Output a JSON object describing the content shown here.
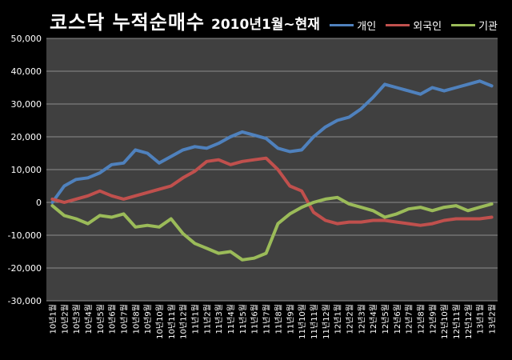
{
  "chart_data": {
    "type": "line",
    "title": "코스닥 누적순매수",
    "subtitle": "2010년1월~현재",
    "xlabel": "",
    "ylabel": "",
    "ylim": [
      -30000,
      50000
    ],
    "yticks": [
      -30000,
      -20000,
      -10000,
      0,
      10000,
      20000,
      30000,
      40000,
      50000
    ],
    "ytick_labels": [
      "-30,000",
      "-20,000",
      "-10,000",
      "0",
      "10,000",
      "20,000",
      "30,000",
      "40,000",
      "50,000"
    ],
    "grid": true,
    "legend_position": "top-right",
    "categories": [
      "10년1월",
      "10년2월",
      "10년3월",
      "10년4월",
      "10년5월",
      "10년6월",
      "10년7월",
      "10년8월",
      "10년9월",
      "10년10월",
      "10년11월",
      "10년12월",
      "11년1월",
      "11년2월",
      "11년3월",
      "11년4월",
      "11년5월",
      "11년6월",
      "11년7월",
      "11년8월",
      "11년9월",
      "11년10월",
      "11년11월",
      "11년12월",
      "12년1월",
      "12년2월",
      "12년3월",
      "12년4월",
      "12년5월",
      "12년6월",
      "12년7월",
      "12년8월",
      "12년9월",
      "12년10월",
      "12년11월",
      "12년12월",
      "13년1월",
      "13년2월"
    ],
    "series": [
      {
        "name": "개인",
        "color": "#4f81bd",
        "values": [
          0,
          5000,
          7000,
          7500,
          9000,
          11500,
          12000,
          16000,
          15000,
          12000,
          14000,
          16000,
          17000,
          16500,
          18000,
          20000,
          21500,
          20500,
          19500,
          16500,
          15500,
          16000,
          20000,
          23000,
          25000,
          26000,
          28500,
          32000,
          36000,
          35000,
          34000,
          33000,
          35000,
          34000,
          35000,
          36000,
          37000,
          35500
        ]
      },
      {
        "name": "외국인",
        "color": "#c0504d",
        "values": [
          1000,
          0,
          1000,
          2000,
          3500,
          2000,
          1000,
          2000,
          3000,
          4000,
          5000,
          7500,
          9500,
          12500,
          13000,
          11500,
          12500,
          13000,
          13500,
          10000,
          5000,
          3500,
          -3000,
          -5500,
          -6500,
          -6000,
          -6000,
          -5500,
          -5500,
          -6000,
          -6500,
          -7000,
          -6500,
          -5500,
          -5000,
          -5000,
          -5000,
          -4500
        ]
      },
      {
        "name": "기관",
        "color": "#9bbb59",
        "values": [
          -1000,
          -4000,
          -5000,
          -6500,
          -4000,
          -4500,
          -3500,
          -7500,
          -7000,
          -7500,
          -5000,
          -9500,
          -12500,
          -14000,
          -15500,
          -15000,
          -17500,
          -17000,
          -15500,
          -6500,
          -3500,
          -1500,
          0,
          1000,
          1500,
          -500,
          -1500,
          -2500,
          -4500,
          -3500,
          -2000,
          -1500,
          -2500,
          -1500,
          -1000,
          -2500,
          -1500,
          -500
        ]
      }
    ]
  }
}
